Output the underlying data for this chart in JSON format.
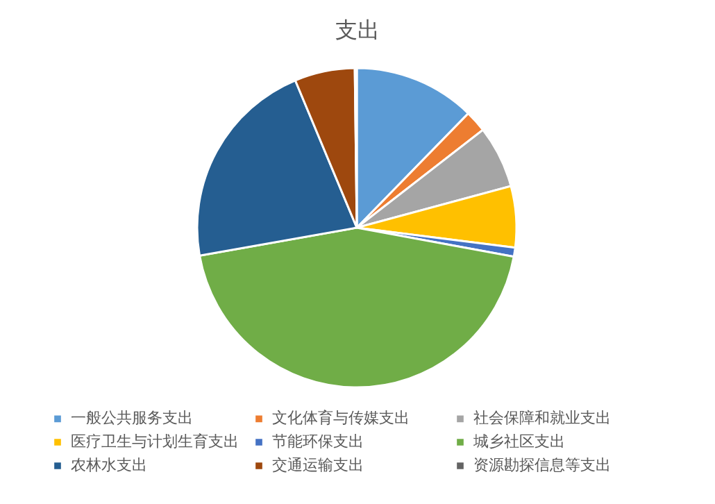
{
  "chart_data": {
    "type": "pie",
    "title": "支出",
    "categories": [
      "一般公共服务支出",
      "文化体育与传媒支出",
      "社会保障和就业支出",
      "医疗卫生与计划生育支出",
      "节能环保支出",
      "城乡社区支出",
      "农林水支出",
      "交通运输支出",
      "资源勘探信息等支出"
    ],
    "values": [
      12.3,
      2.2,
      6.3,
      6.2,
      0.9,
      44.3,
      21.5,
      6.1,
      0.2
    ],
    "colors": [
      "#5b9bd5",
      "#ed7d31",
      "#a5a5a5",
      "#ffc000",
      "#4472c4",
      "#70ad47",
      "#255e91",
      "#9e480e",
      "#636363"
    ],
    "legend": "bottom"
  }
}
